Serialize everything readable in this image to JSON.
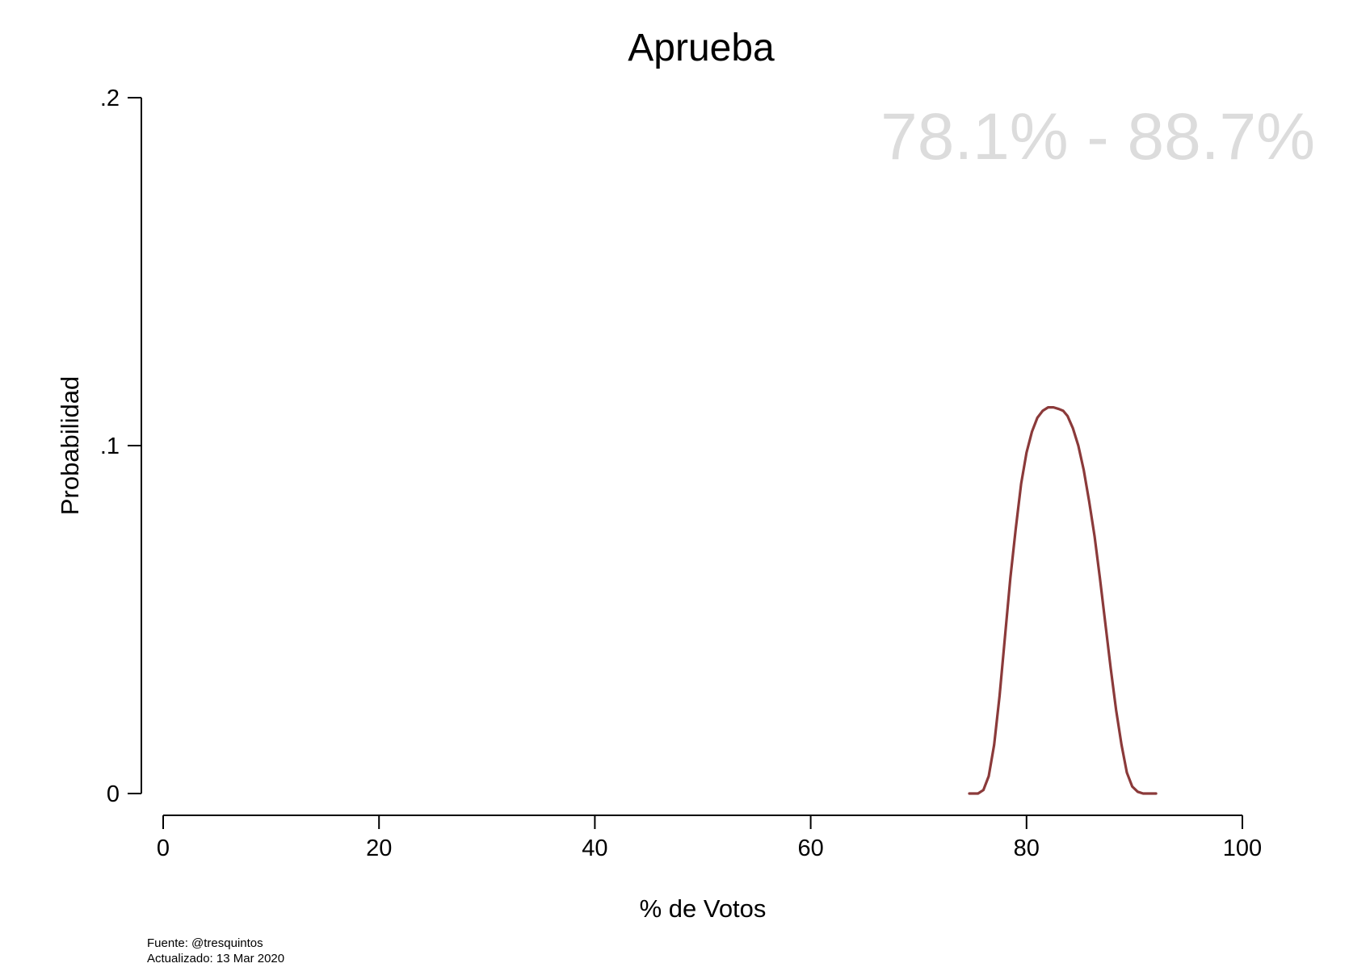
{
  "notes": {
    "source": "Fuente: @tresquintos",
    "updated": "Actualizado: 13 Mar 2020"
  },
  "chart_data": {
    "type": "line",
    "title": "Aprueba",
    "annotation": "78.1% - 88.7%",
    "xlabel": "% de Votos",
    "ylabel": "Probabilidad",
    "xlim": [
      0,
      100
    ],
    "ylim": [
      0,
      0.2
    ],
    "x_ticks": [
      0,
      20,
      40,
      60,
      80,
      100
    ],
    "x_tick_labels": [
      "0",
      "20",
      "40",
      "60",
      "80",
      "100"
    ],
    "y_ticks": [
      0,
      0.1,
      0.2
    ],
    "y_tick_labels": [
      "0",
      ".1",
      ".2"
    ],
    "grid": false,
    "legend": "none",
    "colors": {
      "line": "#8b3a3a",
      "annotation": "#dcdcdc"
    },
    "series": [
      {
        "x": [
          74.7,
          75.5,
          76.0,
          76.5,
          77.0,
          77.5,
          78.0,
          78.5,
          79.0,
          79.5,
          80.0,
          80.5,
          81.0,
          81.5,
          82.0,
          82.5,
          83.0,
          83.4,
          83.8,
          84.3,
          84.8,
          85.3,
          85.8,
          86.3,
          86.8,
          87.3,
          87.8,
          88.3,
          88.8,
          89.3,
          89.8,
          90.3,
          90.8,
          91.3,
          92.0
        ],
        "y": [
          0,
          0,
          0.001,
          0.005,
          0.014,
          0.028,
          0.045,
          0.062,
          0.076,
          0.089,
          0.098,
          0.104,
          0.108,
          0.11,
          0.111,
          0.111,
          0.1105,
          0.11,
          0.1085,
          0.105,
          0.1,
          0.093,
          0.084,
          0.074,
          0.062,
          0.049,
          0.036,
          0.024,
          0.014,
          0.006,
          0.002,
          0.0005,
          0,
          0,
          0
        ]
      }
    ]
  }
}
